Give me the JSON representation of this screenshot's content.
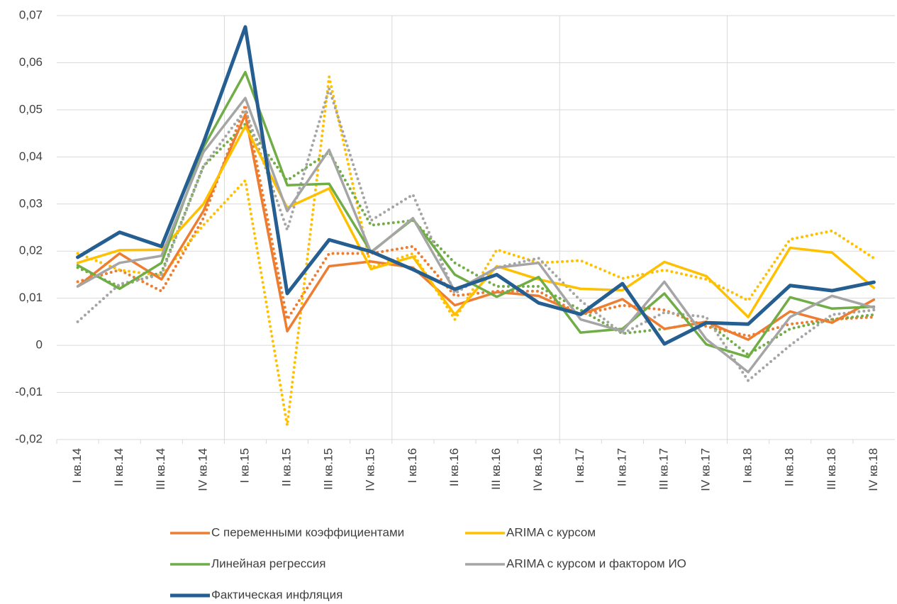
{
  "chart_data": {
    "type": "line",
    "categories": [
      "I кв.14",
      "II кв.14",
      "III кв.14",
      "IV кв.14",
      "I кв.15",
      "II кв.15",
      "III кв.15",
      "IV кв.15",
      "I кв.16",
      "II кв.16",
      "III кв.16",
      "IV кв.16",
      "I кв.17",
      "II кв.17",
      "III кв.17",
      "IV кв.17",
      "I кв.18",
      "II кв.18",
      "III кв.18",
      "IV кв.18"
    ],
    "ylim": [
      -0.02,
      0.07
    ],
    "yticks": [
      {
        "value": -0.02,
        "label": "-0,02"
      },
      {
        "value": -0.01,
        "label": "-0,01"
      },
      0,
      {
        "value": 0.01,
        "label": "0,01"
      },
      {
        "value": 0.02,
        "label": "0,02"
      },
      {
        "value": 0.03,
        "label": "0,03"
      },
      {
        "value": 0.04,
        "label": "0,04"
      },
      {
        "value": 0.05,
        "label": "0,05"
      },
      {
        "value": 0.06,
        "label": "0,06"
      },
      {
        "value": 0.07,
        "label": "0,07"
      }
    ],
    "grid": true,
    "legend": "bottom",
    "series": [
      {
        "name": "С переменными коэффициентами",
        "color": "#ed7d31",
        "values": [
          0.0125,
          0.0195,
          0.014,
          0.0285,
          0.049,
          0.003,
          0.0168,
          0.0178,
          0.0165,
          0.0085,
          0.0113,
          0.0105,
          0.0065,
          0.0098,
          0.0035,
          0.005,
          0.0012,
          0.0072,
          0.0048,
          0.0097
        ]
      },
      {
        "name": "ARIMA с курсом",
        "color": "#ffc000",
        "values": [
          0.0175,
          0.0202,
          0.0203,
          0.03,
          0.0465,
          0.0292,
          0.0333,
          0.0162,
          0.0188,
          0.0065,
          0.0168,
          0.014,
          0.012,
          0.0117,
          0.0177,
          0.0147,
          0.006,
          0.0207,
          0.0197,
          0.0122
        ]
      },
      {
        "name": "Линейная регрессия",
        "color": "#70ad47",
        "values": [
          0.017,
          0.012,
          0.0175,
          0.042,
          0.058,
          0.034,
          0.0343,
          0.0198,
          0.0268,
          0.015,
          0.0103,
          0.0145,
          0.0027,
          0.0035,
          0.011,
          0.0002,
          -0.0025,
          0.0102,
          0.0078,
          0.0082
        ]
      },
      {
        "name": "ARIMA с курсом и фактором ИО",
        "color": "#a5a5a5",
        "values": [
          0.0125,
          0.0175,
          0.019,
          0.041,
          0.0525,
          0.0285,
          0.0415,
          0.0197,
          0.027,
          0.0115,
          0.0165,
          0.0175,
          0.0055,
          0.003,
          0.0135,
          0.0013,
          -0.0057,
          0.006,
          0.0105,
          0.008
        ]
      },
      {
        "name": "Фактическая инфляция",
        "color": "#255e91",
        "width": 5,
        "values": [
          0.0187,
          0.024,
          0.021,
          0.043,
          0.0676,
          0.011,
          0.0224,
          0.0199,
          0.0161,
          0.0119,
          0.015,
          0.009,
          0.0066,
          0.0131,
          0.0003,
          0.0048,
          0.0045,
          0.0127,
          0.0116,
          0.0134
        ]
      },
      {
        "color": "#ed7d31",
        "style": "dotted",
        "values": [
          0.0135,
          0.016,
          0.0115,
          0.027,
          0.051,
          0.0055,
          0.0195,
          0.0195,
          0.021,
          0.0105,
          0.0115,
          0.0115,
          0.0065,
          0.0085,
          0.0075,
          0.004,
          0.002,
          0.0045,
          0.0055,
          0.006
        ]
      },
      {
        "color": "#ffc000",
        "style": "dotted",
        "values": [
          0.0195,
          0.016,
          0.0148,
          0.0255,
          0.035,
          -0.017,
          0.057,
          0.0165,
          0.0195,
          0.0055,
          0.0203,
          0.0175,
          0.018,
          0.0142,
          0.016,
          0.014,
          0.0095,
          0.0225,
          0.0243,
          0.0185
        ]
      },
      {
        "color": "#70ad47",
        "style": "dotted",
        "values": [
          0.0165,
          0.0125,
          0.0155,
          0.038,
          0.047,
          0.035,
          0.041,
          0.0255,
          0.0265,
          0.0175,
          0.0125,
          0.0125,
          0.0075,
          0.0025,
          0.0035,
          0.005,
          -0.002,
          0.0035,
          0.0055,
          0.0065
        ]
      },
      {
        "color": "#a5a5a5",
        "style": "dotted",
        "values": [
          0.005,
          0.013,
          0.015,
          0.038,
          0.05,
          0.0245,
          0.0545,
          0.0265,
          0.032,
          0.011,
          0.0165,
          0.0185,
          0.0095,
          0.0025,
          0.007,
          0.006,
          -0.0075,
          0,
          0.0065,
          0.0075
        ]
      }
    ]
  }
}
